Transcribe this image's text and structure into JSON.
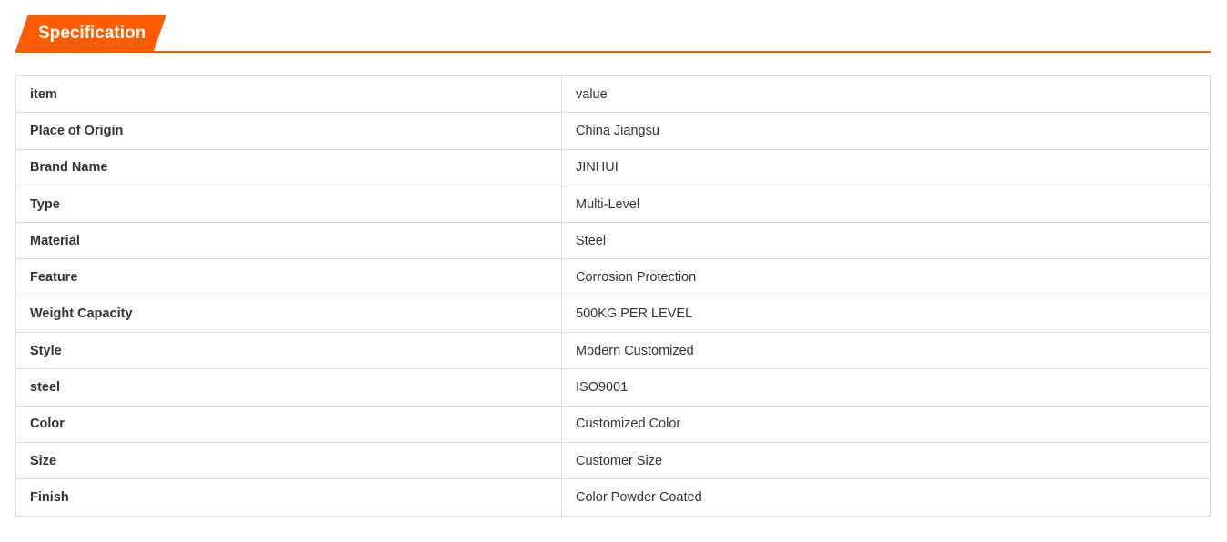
{
  "header": {
    "title": "Specification",
    "accent_color": "#ff5c00"
  },
  "table": {
    "rows": [
      {
        "key": "item",
        "value": "value"
      },
      {
        "key": "Place of Origin",
        "value": "China Jiangsu"
      },
      {
        "key": "Brand Name",
        "value": "JINHUI"
      },
      {
        "key": "Type",
        "value": "Multi-Level"
      },
      {
        "key": "Material",
        "value": "Steel"
      },
      {
        "key": "Feature",
        "value": "Corrosion Protection"
      },
      {
        "key": "Weight Capacity",
        "value": "500KG PER LEVEL"
      },
      {
        "key": "Style",
        "value": "Modern Customized"
      },
      {
        "key": "steel",
        "value": "ISO9001"
      },
      {
        "key": "Color",
        "value": "Customized Color"
      },
      {
        "key": "Size",
        "value": "Customer Size"
      },
      {
        "key": "Finish",
        "value": "Color Powder Coated"
      }
    ]
  }
}
